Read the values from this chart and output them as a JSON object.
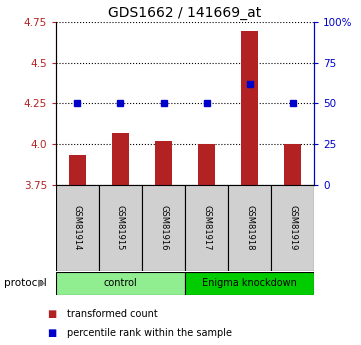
{
  "title": "GDS1662 / 141669_at",
  "samples": [
    "GSM81914",
    "GSM81915",
    "GSM81916",
    "GSM81917",
    "GSM81918",
    "GSM81919"
  ],
  "bar_values": [
    3.93,
    4.07,
    4.02,
    4.0,
    4.7,
    4.0
  ],
  "percentile_values": [
    50,
    50,
    50,
    50,
    62,
    50
  ],
  "bar_bottom": 3.75,
  "ylim_left": [
    3.75,
    4.75
  ],
  "ylim_right": [
    0,
    100
  ],
  "yticks_left": [
    3.75,
    4.0,
    4.25,
    4.5,
    4.75
  ],
  "yticks_right": [
    0,
    25,
    50,
    75,
    100
  ],
  "ytick_labels_right": [
    "0",
    "25",
    "50",
    "75",
    "100%"
  ],
  "bar_color": "#b22222",
  "dot_color": "#0000cd",
  "groups": [
    {
      "label": "control",
      "start": 0,
      "end": 3,
      "color": "#90ee90"
    },
    {
      "label": "Enigma knockdown",
      "start": 3,
      "end": 6,
      "color": "#00cc00"
    }
  ],
  "protocol_label": "protocol",
  "legend_entries": [
    {
      "color": "#b22222",
      "label": "transformed count"
    },
    {
      "color": "#0000cd",
      "label": "percentile rank within the sample"
    }
  ],
  "bg_color": "#ffffff",
  "plot_bg": "#ffffff",
  "sample_box_color": "#d0d0d0"
}
